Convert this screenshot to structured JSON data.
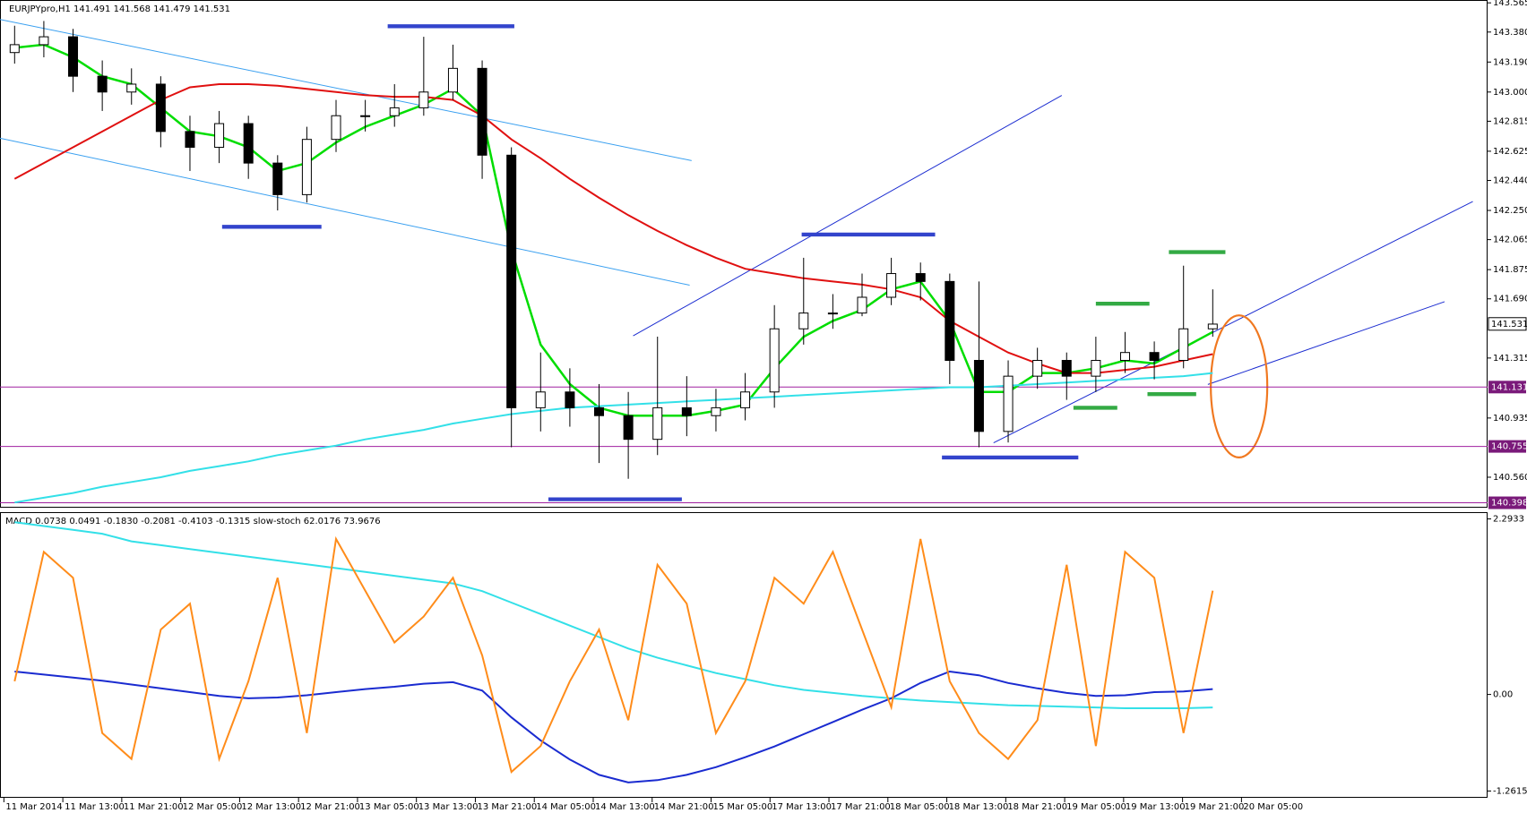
{
  "chart_data": [
    {
      "type": "candlestick",
      "title": "EURJPYpro,H1 141.491 141.568 141.479 141.531",
      "open": [
        143.25,
        143.3,
        143.35,
        143.1,
        143.0,
        143.05,
        142.75,
        142.65,
        142.8,
        142.55,
        142.35,
        142.7,
        142.85,
        142.85,
        142.9,
        143.0,
        143.15,
        142.6,
        141.0,
        141.1,
        141.0,
        140.95,
        140.8,
        141.0,
        140.95,
        141.0,
        141.1,
        141.5,
        141.6,
        141.6,
        141.7,
        141.85,
        141.8,
        141.3,
        140.85,
        141.2,
        141.3,
        141.2,
        141.3,
        141.35,
        141.3,
        141.5
      ],
      "high": [
        143.42,
        143.45,
        143.4,
        143.2,
        143.15,
        143.1,
        142.85,
        142.88,
        142.85,
        142.6,
        142.78,
        142.95,
        142.95,
        143.05,
        143.35,
        143.3,
        143.2,
        142.65,
        141.35,
        141.25,
        141.15,
        141.1,
        141.45,
        141.2,
        141.12,
        141.22,
        141.65,
        141.95,
        141.72,
        141.85,
        141.95,
        141.92,
        141.85,
        141.8,
        141.3,
        141.38,
        141.35,
        141.45,
        141.48,
        141.42,
        141.9,
        141.75
      ],
      "low": [
        143.18,
        143.22,
        143.0,
        142.88,
        142.92,
        142.65,
        142.5,
        142.55,
        142.45,
        142.25,
        142.3,
        142.62,
        142.75,
        142.78,
        142.85,
        142.95,
        142.45,
        140.75,
        140.85,
        140.88,
        140.65,
        140.55,
        140.7,
        140.82,
        140.85,
        140.92,
        141.0,
        141.4,
        141.5,
        141.58,
        141.65,
        141.68,
        141.15,
        140.75,
        140.78,
        141.12,
        141.05,
        141.1,
        141.22,
        141.18,
        141.25,
        141.45
      ],
      "close": [
        143.3,
        143.35,
        143.1,
        143.0,
        143.05,
        142.75,
        142.65,
        142.8,
        142.55,
        142.35,
        142.7,
        142.85,
        142.85,
        142.9,
        143.0,
        143.15,
        142.6,
        141.0,
        141.1,
        141.0,
        140.95,
        140.8,
        141.0,
        140.95,
        141.0,
        141.1,
        141.5,
        141.6,
        141.6,
        141.7,
        141.85,
        141.8,
        141.3,
        140.85,
        141.2,
        141.3,
        141.2,
        141.3,
        141.35,
        141.3,
        141.5,
        141.53
      ],
      "series": [
        {
          "color": "#00dd00",
          "values": [
            143.28,
            143.3,
            143.22,
            143.1,
            143.05,
            142.9,
            142.75,
            142.72,
            142.65,
            142.5,
            142.55,
            142.68,
            142.78,
            142.85,
            142.92,
            143.02,
            142.85,
            142.0,
            141.4,
            141.15,
            141.0,
            140.95,
            140.95,
            140.95,
            140.98,
            141.02,
            141.25,
            141.45,
            141.55,
            141.62,
            141.75,
            141.8,
            141.55,
            141.1,
            141.1,
            141.22,
            141.22,
            141.25,
            141.3,
            141.28,
            141.38,
            141.48
          ]
        },
        {
          "color": "#e01010",
          "values": [
            142.45,
            142.55,
            142.65,
            142.75,
            142.85,
            142.95,
            143.03,
            143.05,
            143.05,
            143.04,
            143.02,
            143.0,
            142.98,
            142.97,
            142.97,
            142.95,
            142.85,
            142.7,
            142.58,
            142.45,
            142.33,
            142.22,
            142.12,
            142.03,
            141.95,
            141.88,
            141.85,
            141.82,
            141.8,
            141.78,
            141.75,
            141.7,
            141.55,
            141.45,
            141.35,
            141.28,
            141.22,
            141.22,
            141.24,
            141.26,
            141.3,
            141.34
          ]
        },
        {
          "color": "#33e0e8",
          "values": [
            140.4,
            140.43,
            140.46,
            140.5,
            140.53,
            140.56,
            140.6,
            140.63,
            140.66,
            140.7,
            140.73,
            140.76,
            140.8,
            140.83,
            140.86,
            140.9,
            140.93,
            140.96,
            140.98,
            141.0,
            141.01,
            141.02,
            141.03,
            141.04,
            141.05,
            141.06,
            141.07,
            141.08,
            141.09,
            141.1,
            141.11,
            141.12,
            141.13,
            141.13,
            141.14,
            141.15,
            141.16,
            141.17,
            141.18,
            141.19,
            141.2,
            141.22
          ]
        }
      ],
      "ylim": [
        140.367,
        143.583
      ],
      "yticks": [
        {
          "value": 143.565,
          "label": "143.565"
        },
        {
          "value": 143.38,
          "label": "143.380"
        },
        {
          "value": 143.19,
          "label": "143.190"
        },
        {
          "value": 143.0,
          "label": "143.000"
        },
        {
          "value": 142.815,
          "label": "142.815"
        },
        {
          "value": 142.625,
          "label": "142.625"
        },
        {
          "value": 142.44,
          "label": "142.440"
        },
        {
          "value": 142.25,
          "label": "142.250"
        },
        {
          "value": 142.065,
          "label": "142.065"
        },
        {
          "value": 141.875,
          "label": "141.875"
        },
        {
          "value": 141.69,
          "label": "141.690"
        },
        {
          "value": 141.315,
          "label": "141.315"
        },
        {
          "value": 140.935,
          "label": "140.935"
        },
        {
          "value": 140.56,
          "label": "140.560"
        }
      ],
      "levels": [
        {
          "value": 141.131,
          "label": "141.131"
        },
        {
          "value": 140.755,
          "label": "140.755"
        },
        {
          "value": 140.398,
          "label": "140.398"
        }
      ],
      "current_price": {
        "value": 141.531,
        "label": "141.531"
      },
      "xlabels": [
        "11 Mar 2014",
        "11 Mar 13:00",
        "11 Mar 21:00",
        "12 Mar 05:00",
        "12 Mar 13:00",
        "12 Mar 21:00",
        "13 Mar 05:00",
        "13 Mar 13:00",
        "13 Mar 21:00",
        "14 Mar 05:00",
        "14 Mar 13:00",
        "14 Mar 21:00",
        "15 Mar 05:00",
        "17 Mar 13:00",
        "17 Mar 21:00",
        "18 Mar 05:00",
        "18 Mar 13:00",
        "18 Mar 21:00",
        "19 Mar 05:00",
        "19 Mar 13:00",
        "19 Mar 21:00",
        "20 Mar 05:00"
      ]
    },
    {
      "type": "line",
      "title": "MACD 0.0738 0.0491 -0.1830 -0.2081 -0.4103 -0.1315 slow-stoch 62.0176 73.9676",
      "series": [
        {
          "color": "#33e0e8",
          "values": [
            2.25,
            2.2,
            2.15,
            2.1,
            2.0,
            1.95,
            1.9,
            1.85,
            1.8,
            1.75,
            1.7,
            1.65,
            1.6,
            1.55,
            1.5,
            1.45,
            1.35,
            1.2,
            1.05,
            0.9,
            0.75,
            0.6,
            0.48,
            0.38,
            0.28,
            0.2,
            0.12,
            0.06,
            0.02,
            -0.02,
            -0.05,
            -0.08,
            -0.1,
            -0.12,
            -0.14,
            -0.15,
            -0.16,
            -0.17,
            -0.18,
            -0.18,
            -0.18,
            -0.17
          ]
        },
        {
          "color": "#1a2bd0",
          "values": [
            0.3,
            0.26,
            0.22,
            0.18,
            0.13,
            0.08,
            0.03,
            -0.02,
            -0.05,
            -0.04,
            -0.01,
            0.03,
            0.07,
            0.1,
            0.14,
            0.16,
            0.05,
            -0.3,
            -0.6,
            -0.85,
            -1.05,
            -1.15,
            -1.12,
            -1.05,
            -0.95,
            -0.82,
            -0.68,
            -0.52,
            -0.36,
            -0.2,
            -0.05,
            0.15,
            0.3,
            0.25,
            0.15,
            0.08,
            0.02,
            -0.02,
            -0.01,
            0.03,
            0.04,
            0.07
          ]
        },
        {
          "color": "#ff8c1a",
          "axis": "y2",
          "values": [
            40,
            90,
            80,
            20,
            10,
            60,
            70,
            10,
            40,
            80,
            20,
            95,
            75,
            55,
            65,
            80,
            50,
            5,
            15,
            40,
            60,
            25,
            85,
            70,
            20,
            40,
            80,
            70,
            90,
            60,
            30,
            95,
            40,
            20,
            10,
            25,
            85,
            15,
            90,
            80,
            20,
            75
          ]
        }
      ],
      "ylim": [
        -1.35,
        2.37
      ],
      "yticks": [
        {
          "value": 2.2933,
          "label": "2.2933"
        },
        {
          "value": 0,
          "label": "0.00"
        },
        {
          "value": -1.2615,
          "label": "-1.2615"
        }
      ],
      "y2lim": [
        -5,
        105
      ]
    }
  ]
}
